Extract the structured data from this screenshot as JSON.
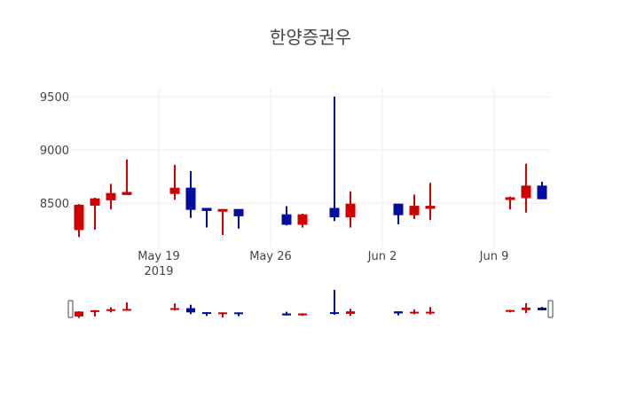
{
  "title": "한양증권우",
  "colors": {
    "increasing": "#d10000",
    "decreasing": "#000da0",
    "grid": "#eeeeee",
    "text": "#444444"
  },
  "chart_data": {
    "type": "candlestick",
    "title": "한양증권우",
    "xlabel": "",
    "ylabel": "",
    "ylim": [
      8120,
      9560
    ],
    "yticks": [
      8500,
      9000,
      9500
    ],
    "xticks": [
      {
        "date": "2019-05-19",
        "label": "May 19",
        "sublabel": "2019"
      },
      {
        "date": "2019-05-26",
        "label": "May 26"
      },
      {
        "date": "2019-06-02",
        "label": "Jun 2"
      },
      {
        "date": "2019-06-09",
        "label": "Jun 9"
      }
    ],
    "x": [
      "2019-05-14",
      "2019-05-15",
      "2019-05-16",
      "2019-05-17",
      "2019-05-20",
      "2019-05-21",
      "2019-05-22",
      "2019-05-23",
      "2019-05-24",
      "2019-05-27",
      "2019-05-28",
      "2019-05-30",
      "2019-05-31",
      "2019-06-03",
      "2019-06-04",
      "2019-06-05",
      "2019-06-10",
      "2019-06-11",
      "2019-06-12"
    ],
    "open": [
      8250,
      8480,
      8530,
      8580,
      8590,
      8640,
      8450,
      8430,
      8440,
      8390,
      8300,
      8450,
      8370,
      8490,
      8390,
      8450,
      8540,
      8550,
      8660
    ],
    "high": [
      8490,
      8550,
      8680,
      8910,
      8860,
      8800,
      8450,
      8440,
      8440,
      8470,
      8400,
      9500,
      8610,
      8490,
      8580,
      8690,
      8560,
      8870,
      8700
    ],
    "low": [
      8180,
      8250,
      8440,
      8580,
      8530,
      8360,
      8270,
      8200,
      8260,
      8290,
      8270,
      8330,
      8270,
      8300,
      8350,
      8340,
      8440,
      8410,
      8540
    ],
    "close": [
      8480,
      8540,
      8590,
      8600,
      8640,
      8440,
      8430,
      8440,
      8380,
      8300,
      8390,
      8370,
      8490,
      8390,
      8470,
      8470,
      8550,
      8660,
      8540
    ],
    "rangeslider": true,
    "grid": true,
    "legend": false
  }
}
